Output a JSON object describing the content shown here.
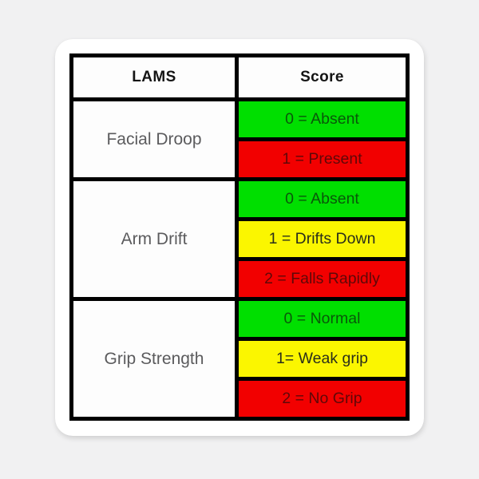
{
  "page": {
    "background": "#f1f1f2"
  },
  "sticker": {
    "background": "#ffffff",
    "corner_radius_px": 22
  },
  "table": {
    "headers": [
      {
        "label": "LAMS"
      },
      {
        "label": "Score"
      }
    ],
    "groups": [
      {
        "label": "Facial Droop",
        "scores": [
          {
            "text": "0 = Absent",
            "color": "green"
          },
          {
            "text": "1 = Present",
            "color": "red"
          }
        ]
      },
      {
        "label": "Arm Drift",
        "scores": [
          {
            "text": "0 = Absent",
            "color": "green"
          },
          {
            "text": "1 = Drifts Down",
            "color": "yellow"
          },
          {
            "text": "2 = Falls Rapidly",
            "color": "red"
          }
        ]
      },
      {
        "label": "Grip Strength",
        "scores": [
          {
            "text": "0 = Normal",
            "color": "green"
          },
          {
            "text": "1= Weak grip",
            "color": "yellow"
          },
          {
            "text": "2 = No Grip",
            "color": "red"
          }
        ]
      }
    ],
    "colors": {
      "green": "#00df00",
      "yellow": "#fbf600",
      "red": "#f20000",
      "grid": "#000000",
      "header_text": "#141414",
      "label_text": "#5b5b5d"
    },
    "text_colors": {
      "green": "#0a570a",
      "yellow": "#2a2e1b",
      "red": "#5f0808"
    }
  },
  "chart_data": {
    "type": "table",
    "title": "LAMS",
    "columns": [
      "LAMS",
      "Score"
    ],
    "rows": [
      [
        "Facial Droop",
        "0 = Absent"
      ],
      [
        "Facial Droop",
        "1 = Present"
      ],
      [
        "Arm Drift",
        "0 = Absent"
      ],
      [
        "Arm Drift",
        "1 = Drifts Down"
      ],
      [
        "Arm Drift",
        "2 = Falls Rapidly"
      ],
      [
        "Grip Strength",
        "0 = Normal"
      ],
      [
        "Grip Strength",
        "1= Weak grip"
      ],
      [
        "Grip Strength",
        "2 = No Grip"
      ]
    ],
    "layout_hints": {
      "row_group_spans": {
        "Facial Droop": 2,
        "Arm Drift": 3,
        "Grip Strength": 3
      },
      "score_cell_colors": [
        "green",
        "red",
        "green",
        "yellow",
        "red",
        "green",
        "yellow",
        "red"
      ],
      "grid": "thick-black-borders"
    }
  }
}
